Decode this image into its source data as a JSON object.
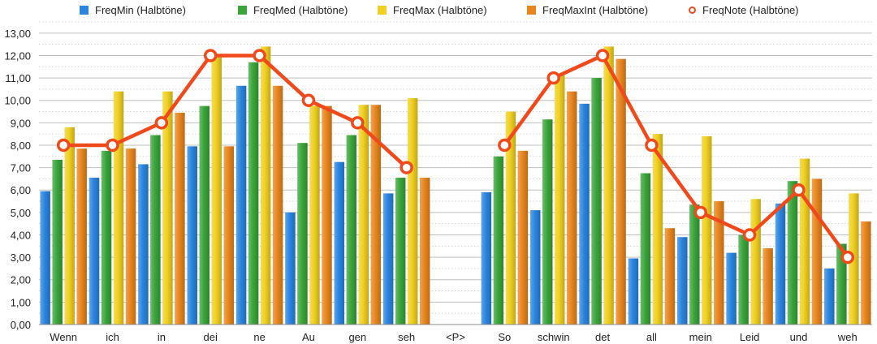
{
  "chart_data": {
    "type": "bar",
    "categories": [
      "Wenn",
      "ich",
      "in",
      "dei",
      "ne",
      "Au",
      "gen",
      "seh",
      "<P>",
      "So",
      "schwin",
      "det",
      "all",
      "mein",
      "Leid",
      "und",
      "weh"
    ],
    "series": [
      {
        "name": "FreqMin (Halbtöne)",
        "kind": "bar",
        "color": "#2a85e0",
        "values": [
          5.95,
          6.55,
          7.15,
          7.95,
          10.65,
          5.0,
          7.25,
          5.85,
          null,
          5.9,
          5.1,
          9.85,
          2.95,
          3.9,
          3.2,
          5.4,
          2.5
        ]
      },
      {
        "name": "FreqMed (Halbtöne)",
        "kind": "bar",
        "color": "#3aa53a",
        "values": [
          7.35,
          7.75,
          8.45,
          9.75,
          11.7,
          8.1,
          8.45,
          6.55,
          null,
          7.5,
          9.15,
          11.0,
          6.75,
          5.35,
          4.0,
          6.4,
          3.6
        ]
      },
      {
        "name": "FreqMax (Halbtöne)",
        "kind": "bar",
        "color": "#f0d020",
        "values": [
          8.8,
          10.4,
          10.4,
          12.05,
          12.4,
          9.75,
          9.8,
          10.1,
          null,
          9.5,
          11.15,
          12.4,
          8.5,
          8.4,
          5.6,
          7.4,
          5.85
        ]
      },
      {
        "name": "FreqMaxInt (Halbtöne)",
        "kind": "bar",
        "color": "#e8861e",
        "values": [
          7.85,
          7.85,
          9.45,
          7.95,
          10.65,
          9.75,
          9.8,
          6.55,
          null,
          7.75,
          10.4,
          11.85,
          4.3,
          5.5,
          3.4,
          6.5,
          4.6
        ]
      },
      {
        "name": "FreqNote (Halbtöne)",
        "kind": "line",
        "color": "#f04a1c",
        "values": [
          8,
          8,
          9,
          12,
          12,
          10,
          9,
          7,
          null,
          8,
          11,
          12,
          8,
          5,
          4,
          6,
          3
        ]
      }
    ],
    "y_ticks": [
      "0,00",
      "1,00",
      "2,00",
      "3,00",
      "4,00",
      "5,00",
      "6,00",
      "7,00",
      "8,00",
      "9,00",
      "10,00",
      "11,00",
      "12,00",
      "13,00"
    ],
    "ylim": [
      0,
      13.5
    ],
    "grid": true,
    "legend_position": "top"
  }
}
